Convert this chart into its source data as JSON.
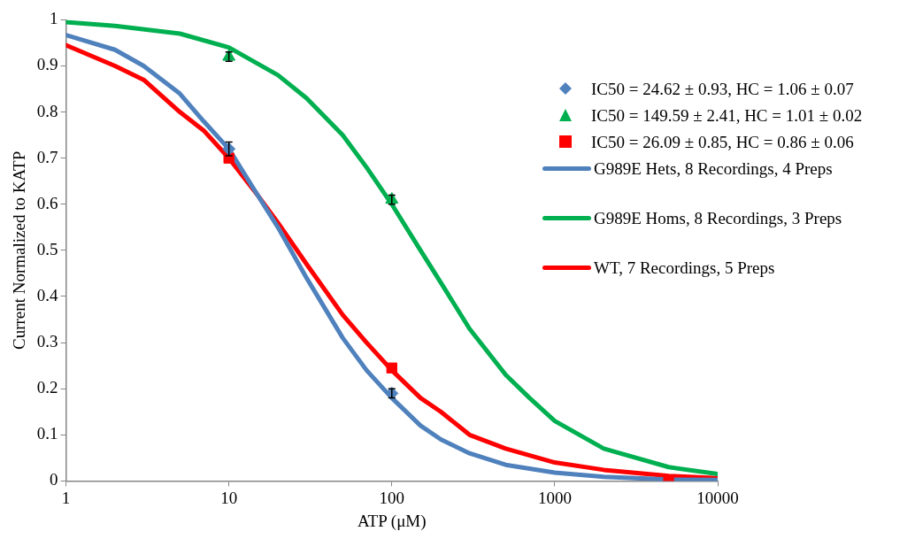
{
  "chart_data": {
    "type": "scatter",
    "xlabel": "ATP (μM)",
    "ylabel": "Current Normalized to KATP",
    "log": "x",
    "grid": false,
    "legend": "right",
    "xlim": [
      1,
      10000
    ],
    "xticks": [
      1,
      10,
      100,
      1000,
      10000
    ],
    "ylim": [
      0,
      1
    ],
    "yticks": [
      0,
      0.1,
      0.2,
      0.3,
      0.4,
      0.5,
      0.6,
      0.7,
      0.8,
      0.9,
      1
    ],
    "series": [
      {
        "name": "G989E Hets, 8 Recordings, 4 Preps",
        "type": "line",
        "color": "#4f81bd",
        "marker": "none",
        "x": [
          1,
          2,
          3,
          5,
          7,
          10,
          15,
          20,
          30,
          50,
          70,
          100,
          150,
          200,
          300,
          500,
          1000,
          2000,
          5000,
          10000
        ],
        "values": [
          0.967,
          0.935,
          0.9,
          0.84,
          0.78,
          0.72,
          0.62,
          0.55,
          0.44,
          0.31,
          0.24,
          0.18,
          0.12,
          0.09,
          0.06,
          0.035,
          0.018,
          0.009,
          0.003,
          0.002
        ]
      },
      {
        "name": "G989E Homs, 8 Recordings, 3 Preps",
        "type": "line",
        "color": "#00b050",
        "marker": "none",
        "x": [
          1,
          2,
          5,
          10,
          20,
          30,
          50,
          70,
          100,
          150,
          200,
          300,
          500,
          700,
          1000,
          2000,
          5000,
          10000
        ],
        "values": [
          0.995,
          0.987,
          0.97,
          0.94,
          0.88,
          0.83,
          0.75,
          0.68,
          0.6,
          0.5,
          0.43,
          0.33,
          0.23,
          0.18,
          0.13,
          0.07,
          0.03,
          0.015
        ]
      },
      {
        "name": "WT, 7 Recordings, 5 Preps",
        "type": "line",
        "color": "#ff0000",
        "marker": "none",
        "x": [
          1,
          2,
          3,
          5,
          7,
          10,
          15,
          20,
          30,
          50,
          70,
          100,
          150,
          200,
          300,
          500,
          1000,
          2000,
          5000,
          10000
        ],
        "values": [
          0.945,
          0.9,
          0.87,
          0.8,
          0.76,
          0.7,
          0.62,
          0.56,
          0.47,
          0.36,
          0.3,
          0.24,
          0.18,
          0.15,
          0.1,
          0.07,
          0.04,
          0.024,
          0.011,
          0.006
        ]
      },
      {
        "name": "IC50 = 24.62 ± 0.93, HC = 1.06 ± 0.07",
        "color": "#4f81bd",
        "marker": "diamond",
        "x": [
          10,
          100
        ],
        "values": [
          0.72,
          0.19
        ],
        "errors": [
          0.015,
          0.01
        ]
      },
      {
        "name": "IC50 = 149.59 ± 2.41, HC = 1.01 ± 0.02",
        "color": "#00b050",
        "marker": "triangle",
        "x": [
          10,
          100
        ],
        "values": [
          0.92,
          0.61
        ],
        "errors": [
          0.01,
          0.01
        ]
      },
      {
        "name": "IC50 = 26.09 ± 0.85, HC = 0.86 ± 0.06",
        "color": "#ff0000",
        "marker": "square",
        "x": [
          10,
          100,
          5000
        ],
        "values": [
          0.7,
          0.245,
          0
        ]
      }
    ]
  }
}
